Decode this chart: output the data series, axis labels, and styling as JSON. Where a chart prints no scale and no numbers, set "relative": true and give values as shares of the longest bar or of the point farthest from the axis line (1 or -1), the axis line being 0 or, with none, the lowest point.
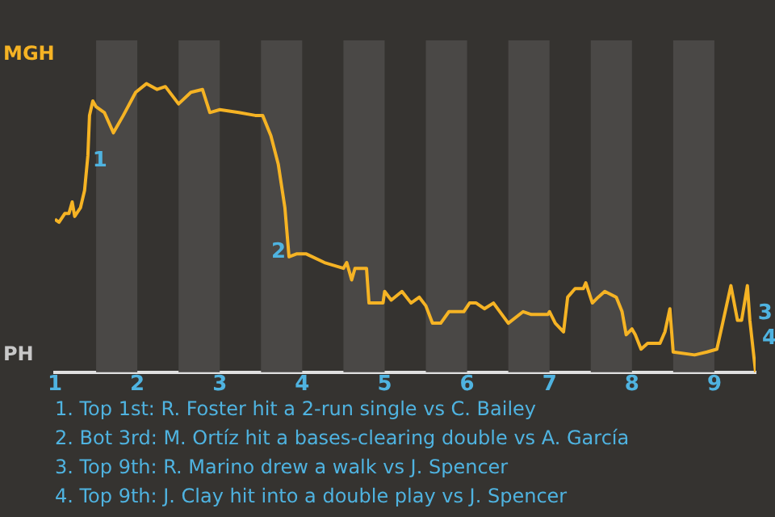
{
  "chart_data": {
    "type": "line",
    "x": [
      1.0,
      1.05,
      1.12,
      1.17,
      1.21,
      1.24,
      1.31,
      1.36,
      1.4,
      1.42,
      1.46,
      1.5,
      1.6,
      1.71,
      1.83,
      1.98,
      2.11,
      2.24,
      2.34,
      2.5,
      2.65,
      2.79,
      2.88,
      3.0,
      3.23,
      3.43,
      3.52,
      3.62,
      3.71,
      3.79,
      3.84,
      3.93,
      4.05,
      4.27,
      4.5,
      4.54,
      4.6,
      4.64,
      4.78,
      4.81,
      4.98,
      5.0,
      5.08,
      5.21,
      5.32,
      5.42,
      5.5,
      5.58,
      5.68,
      5.78,
      5.96,
      6.03,
      6.11,
      6.21,
      6.32,
      6.5,
      6.68,
      6.78,
      6.98,
      7.0,
      7.07,
      7.17,
      7.22,
      7.31,
      7.41,
      7.44,
      7.52,
      7.59,
      7.67,
      7.81,
      7.88,
      7.93,
      8.0,
      8.04,
      8.11,
      8.19,
      8.34,
      8.4,
      8.46,
      8.5,
      8.76,
      8.91,
      9.03,
      9.1,
      9.2,
      9.28,
      9.33,
      9.4,
      9.43,
      9.5
    ],
    "series": [
      {
        "color": "#f5b324",
        "values": [
          0.53,
          0.52,
          0.55,
          0.55,
          0.59,
          0.54,
          0.57,
          0.63,
          0.75,
          0.89,
          0.94,
          0.92,
          0.9,
          0.83,
          0.89,
          0.97,
          1,
          0.98,
          0.99,
          0.93,
          0.97,
          0.98,
          0.9,
          0.91,
          0.9,
          0.89,
          0.89,
          0.82,
          0.72,
          0.57,
          0.4,
          0.41,
          0.41,
          0.38,
          0.36,
          0.38,
          0.32,
          0.36,
          0.36,
          0.24,
          0.24,
          0.28,
          0.25,
          0.28,
          0.24,
          0.26,
          0.23,
          0.17,
          0.17,
          0.21,
          0.21,
          0.24,
          0.24,
          0.22,
          0.24,
          0.17,
          0.21,
          0.2,
          0.2,
          0.21,
          0.17,
          0.14,
          0.26,
          0.29,
          0.29,
          0.31,
          0.24,
          0.26,
          0.28,
          0.26,
          0.21,
          0.13,
          0.15,
          0.13,
          0.08,
          0.1,
          0.1,
          0.14,
          0.22,
          0.07,
          0.06,
          0.07,
          0.08,
          0.17,
          0.3,
          0.18,
          0.18,
          0.3,
          0.18,
          0
        ]
      }
    ],
    "xlim": [
      1,
      9.5
    ],
    "xticks": [
      1,
      2,
      3,
      4,
      5,
      6,
      7,
      8,
      9
    ],
    "relative": true,
    "legend": false,
    "marker": "none",
    "bands": [
      {
        "axis": "x",
        "from": 1.5,
        "to": 2,
        "color": "#4a4846"
      },
      {
        "axis": "x",
        "from": 2.5,
        "to": 3,
        "color": "#4a4846"
      },
      {
        "axis": "x",
        "from": 3.5,
        "to": 4,
        "color": "#4a4846"
      },
      {
        "axis": "x",
        "from": 4.5,
        "to": 5,
        "color": "#4a4846"
      },
      {
        "axis": "x",
        "from": 5.5,
        "to": 6,
        "color": "#4a4846"
      },
      {
        "axis": "x",
        "from": 6.5,
        "to": 7,
        "color": "#4a4846"
      },
      {
        "axis": "x",
        "from": 7.5,
        "to": 8,
        "color": "#4a4846"
      },
      {
        "axis": "x",
        "from": 8.5,
        "to": 9,
        "color": "#4a4846"
      }
    ],
    "annotations": [
      {
        "text": "1",
        "x": 1.4,
        "y": 0.75
      },
      {
        "text": "2",
        "x": 3.84,
        "y": 0.4
      },
      {
        "text": "3",
        "x": 9.43,
        "y": 0.18
      },
      {
        "text": "4",
        "x": 9.5,
        "y": 0
      },
      "MGH",
      "PH",
      "1. Top 1st: R. Foster hit a 2-run single vs C. Bailey",
      "2. Bot 3rd: M. Ortíz hit a bases-clearing double vs A. García",
      "3. Top 9th: R. Marino drew a walk vs J. Spencer",
      "4. Top 9th: J. Clay hit into a double play vs J. Spencer"
    ]
  }
}
